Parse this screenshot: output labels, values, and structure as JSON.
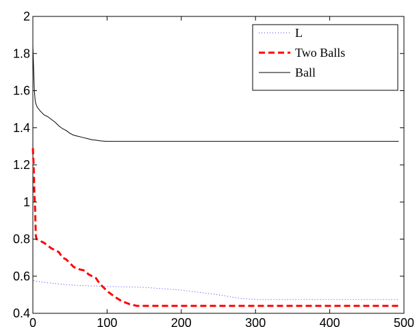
{
  "chart_data": {
    "type": "line",
    "title": "",
    "xlabel": "",
    "ylabel": "",
    "xlim": [
      0,
      500
    ],
    "ylim": [
      0.4,
      2
    ],
    "xticks": [
      0,
      100,
      200,
      300,
      400,
      500
    ],
    "yticks": [
      0.4,
      0.6,
      0.8,
      1,
      1.2,
      1.4,
      1.6,
      1.8,
      2
    ],
    "xtick_labels": [
      "0",
      "100",
      "200",
      "300",
      "400",
      "500"
    ],
    "ytick_labels": [
      "0.4",
      "0.6",
      "0.8",
      "1",
      "1.2",
      "1.4",
      "1.6",
      "1.8",
      "2"
    ],
    "grid": false,
    "legend_position": "top-right",
    "series": [
      {
        "name": "L",
        "color": "#3333ff",
        "style": "dotted",
        "x": [
          1,
          10,
          30,
          60,
          100,
          150,
          200,
          250,
          280,
          300,
          350,
          400,
          450,
          493
        ],
        "y": [
          0.575,
          0.57,
          0.56,
          0.55,
          0.545,
          0.54,
          0.525,
          0.5,
          0.48,
          0.475,
          0.475,
          0.475,
          0.475,
          0.475
        ]
      },
      {
        "name": "Two Balls",
        "color": "#ff0000",
        "style": "dashed",
        "x": [
          0,
          1,
          2,
          3,
          4,
          5,
          8,
          10,
          15,
          20,
          25,
          30,
          35,
          40,
          45,
          50,
          55,
          60,
          65,
          70,
          75,
          80,
          85,
          90,
          95,
          100,
          110,
          120,
          130,
          140,
          200,
          250,
          300,
          400,
          493
        ],
        "y": [
          1.29,
          1.2,
          1.05,
          0.96,
          0.82,
          0.8,
          0.795,
          0.79,
          0.78,
          0.765,
          0.75,
          0.74,
          0.73,
          0.7,
          0.69,
          0.67,
          0.65,
          0.64,
          0.635,
          0.63,
          0.61,
          0.6,
          0.59,
          0.56,
          0.54,
          0.52,
          0.49,
          0.465,
          0.45,
          0.44,
          0.44,
          0.44,
          0.44,
          0.44,
          0.44
        ]
      },
      {
        "name": "Ball",
        "color": "#000000",
        "style": "solid",
        "x": [
          0,
          1,
          2,
          3,
          4,
          6,
          8,
          10,
          15,
          20,
          25,
          30,
          35,
          40,
          45,
          50,
          55,
          60,
          65,
          70,
          75,
          80,
          85,
          90,
          95,
          100,
          150,
          200,
          300,
          400,
          493
        ],
        "y": [
          1.84,
          1.72,
          1.6,
          1.55,
          1.53,
          1.51,
          1.5,
          1.49,
          1.47,
          1.46,
          1.445,
          1.43,
          1.41,
          1.395,
          1.385,
          1.37,
          1.36,
          1.355,
          1.35,
          1.345,
          1.34,
          1.335,
          1.333,
          1.33,
          1.328,
          1.327,
          1.327,
          1.327,
          1.327,
          1.327,
          1.327
        ]
      }
    ]
  }
}
